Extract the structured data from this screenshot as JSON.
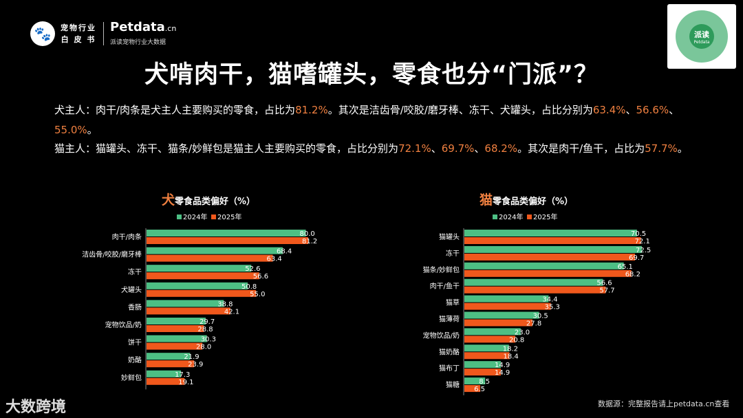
{
  "header": {
    "logo_icon": "paw-logo-icon",
    "logo_text_line1": "宠物行业",
    "logo_text_line2": "白 皮 书",
    "brand": "Petdata",
    "brand_suffix": ".cn",
    "brand_sub": "派读宠物行业大数据"
  },
  "qr": {
    "label": "派读",
    "sublabel": "Petdata"
  },
  "title": "犬啃肉干，猫嗜罐头，零食也分“门派”？",
  "paragraph1": {
    "t1": "犬主人：肉干/肉条是犬主人主要购买的零食，占比为",
    "v1": "81.2%",
    "t2": "。其次是洁齿骨/咬胶/磨牙棒、冻干、犬罐头，占比分别为",
    "v2": "63.4%",
    "s1": "、",
    "v3": "56.6%",
    "s2": "、",
    "v4": "55.0%",
    "t3": "。"
  },
  "paragraph2": {
    "t1": "猫主人：猫罐头、冻干、猫条/妙鲜包是猫主人主要购买的零食，占比分别为",
    "v1": "72.1%",
    "s1": "、",
    "v2": "69.7%",
    "s2": "、",
    "v3": "68.2%",
    "t2": "。其次是肉干/鱼干，占比为",
    "v4": "57.7%",
    "t3": "。"
  },
  "colors": {
    "s2024": "#4dbf84",
    "s2025": "#f0581c",
    "highlight": "#f08040"
  },
  "chart_data": [
    {
      "type": "bar",
      "orientation": "horizontal",
      "title_prefix": "犬",
      "title": "零食品类偏好（%）",
      "categories": [
        "肉干/肉条",
        "洁齿骨/咬胶/磨牙棒",
        "冻干",
        "犬罐头",
        "香肠",
        "宠物饮品/奶",
        "饼干",
        "奶酪",
        "妙鲜包"
      ],
      "series": [
        {
          "name": "2024年",
          "values": [
            80.0,
            68.4,
            52.6,
            50.8,
            38.8,
            29.7,
            30.3,
            21.9,
            17.3
          ]
        },
        {
          "name": "2025年",
          "values": [
            81.2,
            63.4,
            56.6,
            55.0,
            42.1,
            28.8,
            28.0,
            23.9,
            19.1
          ]
        }
      ],
      "legend": "top"
    },
    {
      "type": "bar",
      "orientation": "horizontal",
      "title_prefix": "猫",
      "title": "零食品类偏好（%）",
      "categories": [
        "猫罐头",
        "冻干",
        "猫条/妙鲜包",
        "肉干/鱼干",
        "猫草",
        "猫薄荷",
        "宠物饮品/奶",
        "猫奶酪",
        "猫布丁",
        "猫糖"
      ],
      "series": [
        {
          "name": "2024年",
          "values": [
            70.5,
            72.5,
            65.1,
            56.6,
            34.4,
            30.5,
            23.0,
            18.2,
            14.9,
            8.5
          ]
        },
        {
          "name": "2025年",
          "values": [
            72.1,
            69.7,
            68.2,
            57.7,
            35.3,
            27.8,
            20.8,
            18.4,
            14.9,
            6.5
          ]
        }
      ],
      "legend": "top"
    }
  ],
  "footer": {
    "logo_text": "大数跨境",
    "source": "数据源：完整报告请上petdata.cn查看"
  }
}
